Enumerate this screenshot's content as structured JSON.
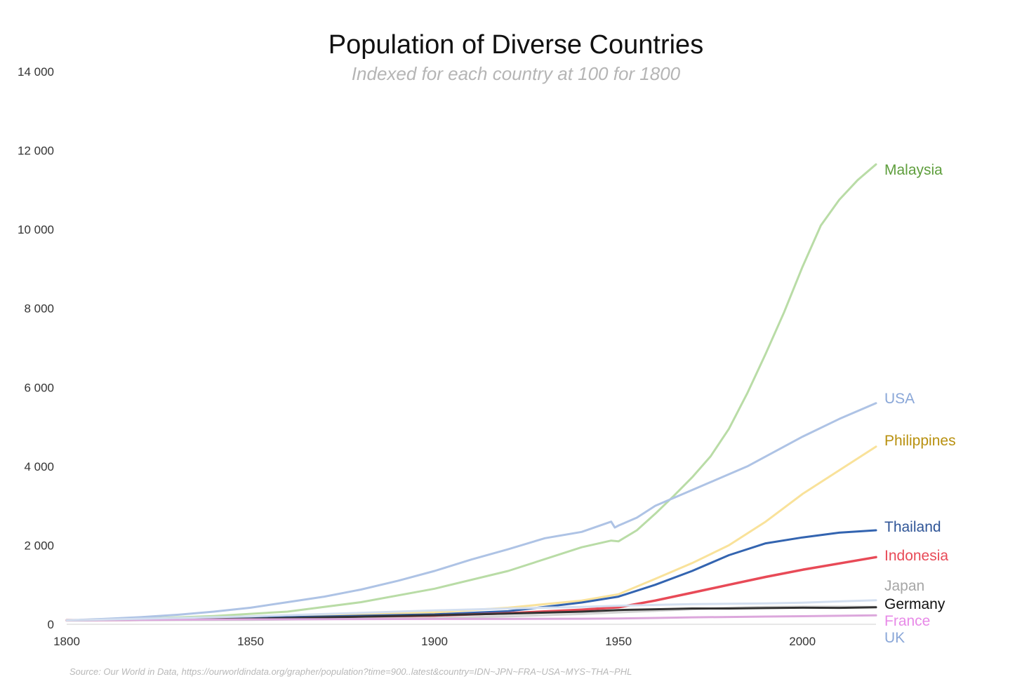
{
  "chart_data": {
    "type": "line",
    "title": "Population of Diverse Countries",
    "subtitle": "Indexed for each country at 100 for 1800",
    "xlabel": "",
    "ylabel": "",
    "xlim": [
      1800,
      2020
    ],
    "ylim": [
      0,
      14000
    ],
    "x_ticks": [
      1800,
      1850,
      1900,
      1950,
      2000
    ],
    "x_tick_labels": [
      "1800",
      "1850",
      "1900",
      "1950",
      "2000"
    ],
    "y_ticks": [
      0,
      2000,
      4000,
      6000,
      8000,
      10000,
      12000,
      14000
    ],
    "y_tick_labels": [
      "0",
      "2 000",
      "4 000",
      "6 000",
      "8 000",
      "10 000",
      "12 000",
      "14 000"
    ],
    "grid": false,
    "legend": "direct labels at line ends (right)",
    "source": "Source: Our World in Data, https://ourworldindata.org/grapher/population?time=900..latest&country=IDN~JPN~FRA~USA~MYS~THA~PHL",
    "series": [
      {
        "name": "Malaysia",
        "color": "#b9dca6",
        "label_color": "#5e9e3c",
        "emphasis": false,
        "x": [
          1800,
          1820,
          1840,
          1860,
          1880,
          1900,
          1920,
          1940,
          1948,
          1950,
          1955,
          1960,
          1965,
          1970,
          1975,
          1980,
          1985,
          1990,
          1995,
          2000,
          2005,
          2010,
          2015,
          2020
        ],
        "y": [
          100,
          140,
          210,
          320,
          560,
          900,
          1350,
          1950,
          2120,
          2100,
          2380,
          2800,
          3250,
          3720,
          4250,
          4950,
          5850,
          6850,
          7900,
          9050,
          10100,
          10750,
          11250,
          11650
        ]
      },
      {
        "name": "USA",
        "color": "#aec3e5",
        "label_color": "#8aa7d8",
        "emphasis": false,
        "x": [
          1800,
          1810,
          1820,
          1830,
          1840,
          1850,
          1860,
          1870,
          1880,
          1890,
          1900,
          1910,
          1920,
          1930,
          1940,
          1948,
          1949,
          1950,
          1955,
          1960,
          1965,
          1970,
          1975,
          1980,
          1985,
          1990,
          2000,
          2010,
          2020
        ],
        "y": [
          100,
          135,
          180,
          240,
          320,
          420,
          560,
          700,
          880,
          1100,
          1350,
          1640,
          1900,
          2180,
          2340,
          2600,
          2450,
          2500,
          2700,
          3000,
          3200,
          3400,
          3600,
          3800,
          4000,
          4250,
          4750,
          5200,
          5600
        ]
      },
      {
        "name": "Philippines",
        "color": "#f9e29a",
        "label_color": "#b8900f",
        "emphasis": false,
        "x": [
          1800,
          1850,
          1900,
          1920,
          1940,
          1950,
          1960,
          1970,
          1980,
          1990,
          2000,
          2010,
          2020
        ],
        "y": [
          100,
          180,
          300,
          420,
          600,
          760,
          1150,
          1550,
          2000,
          2600,
          3300,
          3900,
          4500
        ]
      },
      {
        "name": "Thailand",
        "color": "#3364b0",
        "label_color": "#2f5597",
        "emphasis": false,
        "x": [
          1800,
          1850,
          1900,
          1920,
          1940,
          1950,
          1960,
          1970,
          1980,
          1990,
          2000,
          2010,
          2020
        ],
        "y": [
          100,
          160,
          250,
          330,
          550,
          700,
          1000,
          1350,
          1750,
          2050,
          2200,
          2320,
          2380
        ]
      },
      {
        "name": "Indonesia",
        "color": "#e84a57",
        "label_color": "#e84a57",
        "emphasis": true,
        "x": [
          1800,
          1850,
          1900,
          1920,
          1940,
          1950,
          1960,
          1970,
          1980,
          1990,
          2000,
          2010,
          2020
        ],
        "y": [
          100,
          130,
          220,
          280,
          370,
          430,
          600,
          800,
          1000,
          1200,
          1380,
          1540,
          1700
        ]
      },
      {
        "name": "Japan",
        "color": "#d4d4d4",
        "label_color": "#a6a6a6",
        "emphasis": false,
        "x": [
          1800,
          1850,
          1900,
          1920,
          1940,
          1950,
          1960,
          1970,
          1980,
          1990,
          2000,
          2010,
          2020
        ],
        "y": [
          100,
          110,
          160,
          200,
          260,
          300,
          340,
          380,
          420,
          440,
          450,
          450,
          440
        ]
      },
      {
        "name": "Germany",
        "color": "#333333",
        "label_color": "#111111",
        "emphasis": false,
        "x": [
          1800,
          1850,
          1900,
          1920,
          1940,
          1950,
          1960,
          1970,
          1980,
          1990,
          2000,
          2010,
          2020
        ],
        "y": [
          100,
          140,
          230,
          270,
          320,
          360,
          380,
          400,
          400,
          410,
          420,
          415,
          430
        ]
      },
      {
        "name": "France",
        "color": "#dca7dc",
        "label_color": "#e88ae8",
        "emphasis": false,
        "x": [
          1800,
          1850,
          1900,
          1920,
          1940,
          1950,
          1960,
          1970,
          1980,
          1990,
          2000,
          2010,
          2020
        ],
        "y": [
          100,
          125,
          135,
          135,
          140,
          145,
          160,
          175,
          185,
          195,
          205,
          215,
          225
        ]
      },
      {
        "name": "UK",
        "color": "#d3dff0",
        "label_color": "#8aa7d8",
        "emphasis": false,
        "x": [
          1800,
          1850,
          1900,
          1920,
          1940,
          1950,
          1960,
          1970,
          1980,
          1990,
          2000,
          2010,
          2020
        ],
        "y": [
          100,
          200,
          350,
          400,
          440,
          470,
          490,
          510,
          520,
          530,
          545,
          580,
          610
        ]
      }
    ]
  }
}
